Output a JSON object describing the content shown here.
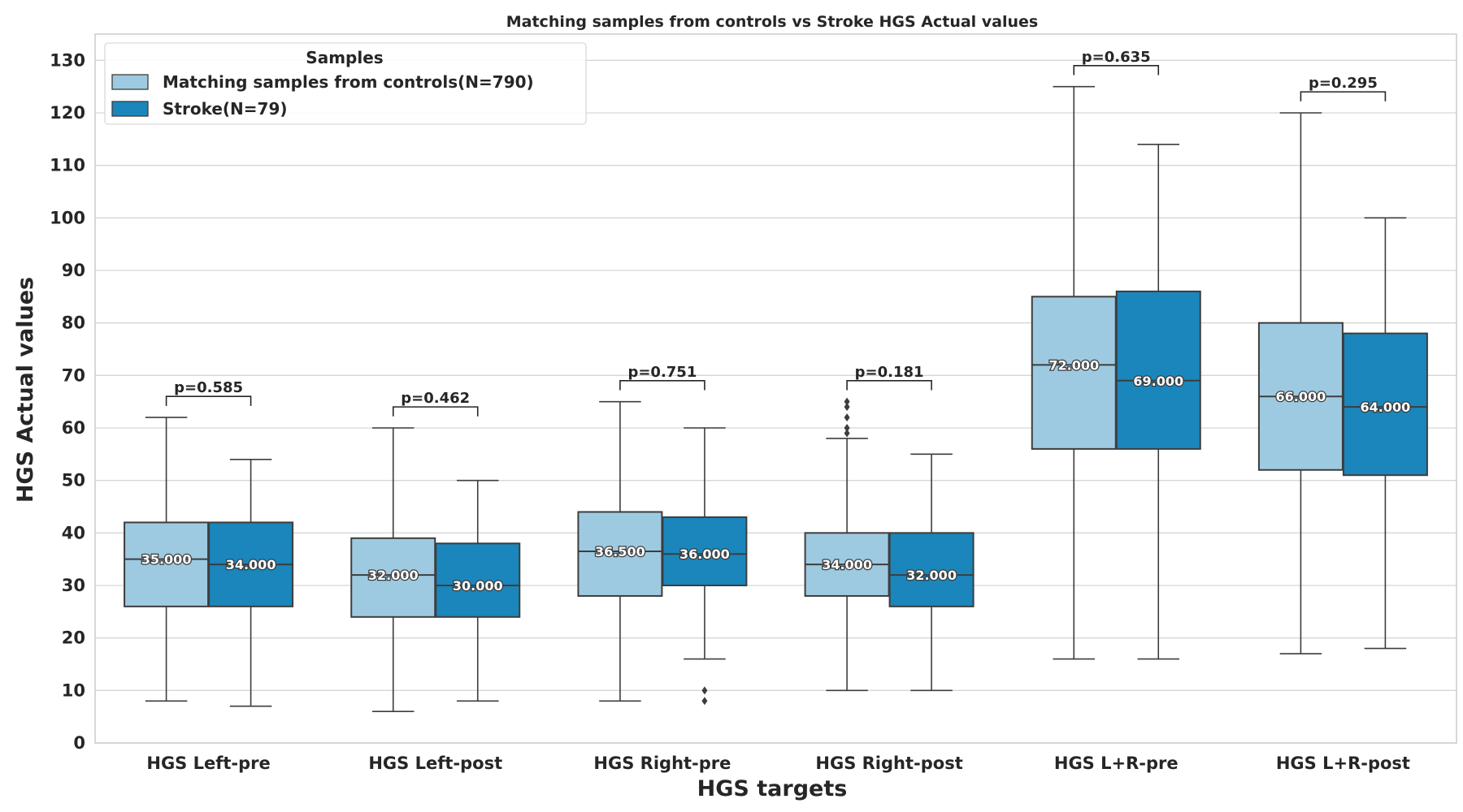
{
  "chart_data": {
    "type": "box",
    "title": "Matching samples from controls vs Stroke HGS Actual values",
    "xlabel": "HGS targets",
    "ylabel": "HGS Actual values",
    "ylim": [
      0,
      135
    ],
    "yticks": [
      0,
      10,
      20,
      30,
      40,
      50,
      60,
      70,
      80,
      90,
      100,
      110,
      120,
      130
    ],
    "ytick_labels": [
      "0",
      "10",
      "20",
      "30",
      "40",
      "50",
      "60",
      "70",
      "80",
      "90",
      "100",
      "110",
      "120",
      "130"
    ],
    "grid": "horizontal",
    "legend": {
      "title": "Samples",
      "position": "top-left"
    },
    "categories": [
      "HGS Left-pre",
      "HGS Left-post",
      "HGS Right-pre",
      "HGS Right-post",
      "HGS L+R-pre",
      "HGS L+R-post"
    ],
    "series": [
      {
        "name": "Matching samples from controls(N=790)",
        "color": "#9ecae1",
        "boxes": [
          {
            "whislo": 8,
            "q1": 26,
            "med": 35,
            "q3": 42,
            "whishi": 62,
            "fliers": [],
            "median_label": "35.000"
          },
          {
            "whislo": 6,
            "q1": 24,
            "med": 32,
            "q3": 39,
            "whishi": 60,
            "fliers": [],
            "median_label": "32.000"
          },
          {
            "whislo": 8,
            "q1": 28,
            "med": 36.5,
            "q3": 44,
            "whishi": 65,
            "fliers": [],
            "median_label": "36.500"
          },
          {
            "whislo": 10,
            "q1": 28,
            "med": 34,
            "q3": 40,
            "whishi": 58,
            "fliers": [
              59,
              60,
              62,
              64,
              65
            ],
            "median_label": "34.000"
          },
          {
            "whislo": 16,
            "q1": 56,
            "med": 72,
            "q3": 85,
            "whishi": 125,
            "fliers": [],
            "median_label": "72.000"
          },
          {
            "whislo": 17,
            "q1": 52,
            "med": 66,
            "q3": 80,
            "whishi": 120,
            "fliers": [],
            "median_label": "66.000"
          }
        ]
      },
      {
        "name": "Stroke(N=79)",
        "color": "#1a86bb",
        "boxes": [
          {
            "whislo": 7,
            "q1": 26,
            "med": 34,
            "q3": 42,
            "whishi": 54,
            "fliers": [],
            "median_label": "34.000"
          },
          {
            "whislo": 8,
            "q1": 24,
            "med": 30,
            "q3": 38,
            "whishi": 50,
            "fliers": [],
            "median_label": "30.000"
          },
          {
            "whislo": 16,
            "q1": 30,
            "med": 36,
            "q3": 43,
            "whishi": 60,
            "fliers": [
              8,
              10
            ],
            "median_label": "36.000"
          },
          {
            "whislo": 10,
            "q1": 26,
            "med": 32,
            "q3": 40,
            "whishi": 55,
            "fliers": [],
            "median_label": "32.000"
          },
          {
            "whislo": 16,
            "q1": 56,
            "med": 69,
            "q3": 86,
            "whishi": 114,
            "fliers": [],
            "median_label": "69.000"
          },
          {
            "whislo": 18,
            "q1": 51,
            "med": 64,
            "q3": 78,
            "whishi": 100,
            "fliers": [],
            "median_label": "64.000"
          }
        ]
      }
    ],
    "annotations": [
      {
        "category": "HGS Left-pre",
        "text": "p=0.585",
        "y": 66,
        "tick_ends": [
          64.2,
          64.2
        ]
      },
      {
        "category": "HGS Left-post",
        "text": "p=0.462",
        "y": 64,
        "tick_ends": [
          62.2,
          62.2
        ]
      },
      {
        "category": "HGS Right-pre",
        "text": "p=0.751",
        "y": 69,
        "tick_ends": [
          67.2,
          67.2
        ]
      },
      {
        "category": "HGS Right-post",
        "text": "p=0.181",
        "y": 69,
        "tick_ends": [
          67.2,
          67.2
        ]
      },
      {
        "category": "HGS L+R-pre",
        "text": "p=0.635",
        "y": 129,
        "tick_ends": [
          127.2,
          127.2
        ]
      },
      {
        "category": "HGS L+R-post",
        "text": "p=0.295",
        "y": 124,
        "tick_ends": [
          122.2,
          122.2
        ]
      }
    ]
  }
}
